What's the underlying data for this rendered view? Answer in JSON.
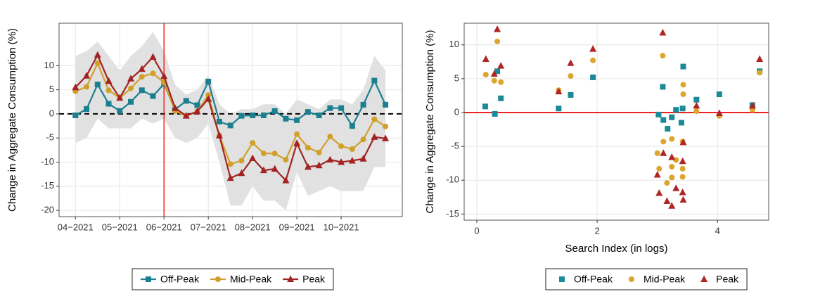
{
  "chart_data": [
    {
      "type": "line",
      "y_label": "Change in Aggregate Consumption (%)",
      "x": [
        0,
        0.25,
        0.5,
        0.75,
        1,
        1.25,
        1.5,
        1.75,
        2,
        2.25,
        2.5,
        2.75,
        3,
        3.25,
        3.5,
        3.75,
        4,
        4.25,
        4.5,
        4.75,
        5,
        5.25,
        5.5,
        5.75,
        6,
        6.25,
        6.5,
        6.75,
        7
      ],
      "xlim": [
        -0.37,
        7.38
      ],
      "xticks": [
        {
          "value": 0,
          "label": "04−2021"
        },
        {
          "value": 1,
          "label": "05−2021"
        },
        {
          "value": 2,
          "label": "06−2021"
        },
        {
          "value": 3,
          "label": "07−2021"
        },
        {
          "value": 4,
          "label": "08−2021"
        },
        {
          "value": 5,
          "label": "09−2021"
        },
        {
          "value": 6,
          "label": "10−2021"
        }
      ],
      "ylim": [
        -21.3,
        18.8
      ],
      "yticks": [
        -20,
        -15,
        -10,
        -5,
        0,
        5,
        10
      ],
      "grid": true,
      "vline": 2,
      "vline_color": "#ee2222",
      "hline": 0,
      "hline_color": "#000000",
      "hline_dash": true,
      "band": {
        "color": "#d9d9d9",
        "upper": [
          12,
          13,
          15,
          12,
          9,
          12,
          14,
          17,
          13,
          6,
          4,
          5,
          8,
          2,
          0,
          1,
          1,
          2,
          2,
          0,
          3,
          2,
          1,
          3,
          3,
          2,
          5,
          12,
          9
        ],
        "lower": [
          -6,
          -5,
          -1,
          -3,
          -3,
          -3,
          -1,
          -2,
          -1,
          -5,
          -6,
          -5,
          -2,
          -10,
          -19,
          -19,
          -15,
          -18,
          -18,
          -20,
          -12,
          -17,
          -16,
          -15,
          -16,
          -16,
          -16,
          -11,
          -11
        ]
      },
      "legend": "bottom",
      "series": [
        {
          "name": "Off-Peak",
          "color": "#1b7f8f",
          "marker": "square",
          "values": [
            -0.3,
            1,
            6.1,
            2.1,
            0.6,
            2.5,
            4.9,
            3.7,
            6.2,
            0.9,
            2.7,
            1.8,
            6.7,
            -1.6,
            -2.4,
            -0.4,
            -0.3,
            -0.3,
            0.6,
            -1,
            -1.3,
            0.4,
            -0.3,
            1.2,
            1.2,
            -2.5,
            1.9,
            6.9,
            1.9
          ]
        },
        {
          "name": "Mid-Peak",
          "color": "#d1a02a",
          "marker": "circle",
          "values": [
            4.7,
            5.6,
            10.5,
            4.9,
            3.3,
            5.3,
            7.7,
            8.4,
            6.5,
            0.6,
            -0.4,
            0.5,
            3.9,
            -4.5,
            -10.4,
            -9.7,
            -6,
            -8.2,
            -8.2,
            -9.5,
            -4.2,
            -7,
            -8,
            -4.7,
            -6.7,
            -7.3,
            -5.3,
            -1.1,
            -2.6
          ]
        },
        {
          "name": "Peak",
          "color": "#a32323",
          "marker": "triangle",
          "values": [
            5.5,
            7.9,
            12.2,
            6.8,
            3.3,
            7.3,
            9.3,
            11.8,
            7.8,
            1.2,
            -0.4,
            0.5,
            3.1,
            -4.5,
            -13.3,
            -12.3,
            -9.2,
            -11.7,
            -11.4,
            -13.8,
            -6.1,
            -11,
            -10.7,
            -9.5,
            -10,
            -9.7,
            -9.3,
            -4.8,
            -5.1
          ]
        }
      ]
    },
    {
      "type": "scatter",
      "y_label": "Change in Aggregate Consumption (%)",
      "x_label": "Search Index (in logs)",
      "xlim": [
        -0.21,
        4.85
      ],
      "xticks": [
        0,
        2,
        4
      ],
      "ylim": [
        -15.9,
        13.2
      ],
      "yticks": [
        -15,
        -10,
        -5,
        0,
        5,
        10
      ],
      "grid": true,
      "hline": 0,
      "hline_color": "#ee2222",
      "legend": "bottom",
      "series": [
        {
          "name": "Off-Peak",
          "color": "#1b8a98",
          "marker": "square",
          "x": [
            0.14,
            0.3,
            0.34,
            0.4,
            1.36,
            1.56,
            1.93,
            3.02,
            3.09,
            3.1,
            3.17,
            3.24,
            3.31,
            3.4,
            3.42,
            3.43,
            3.65,
            4.03,
            4.58,
            4.7
          ],
          "values": [
            0.9,
            -0.2,
            6.1,
            2.1,
            0.6,
            2.6,
            5.2,
            -0.3,
            3.8,
            -1.1,
            -2.4,
            -0.7,
            0.4,
            -1.5,
            0.6,
            6.8,
            1.9,
            2.7,
            1.1,
            6.1
          ]
        },
        {
          "name": "Mid-Peak",
          "color": "#dca52c",
          "marker": "circle",
          "x": [
            0.15,
            0.29,
            0.34,
            0.4,
            1.36,
            1.56,
            1.93,
            3.0,
            3.03,
            3.09,
            3.1,
            3.16,
            3.24,
            3.24,
            3.24,
            3.31,
            3.42,
            3.43,
            3.43,
            3.42,
            3.42,
            3.65,
            4.03,
            4.58,
            4.7
          ],
          "values": [
            5.6,
            4.7,
            10.5,
            4.5,
            3.3,
            5.4,
            7.7,
            -6,
            -8.3,
            8.4,
            -4.3,
            -10.4,
            -3.9,
            -8,
            -9.6,
            -7,
            -4.3,
            4.1,
            2.7,
            -8.3,
            -9.5,
            0.2,
            -0.5,
            0.4,
            5.9
          ]
        },
        {
          "name": "Peak",
          "color": "#b02525",
          "marker": "triangle",
          "x": [
            0.15,
            0.29,
            0.34,
            0.4,
            1.36,
            1.56,
            1.93,
            3.0,
            3.03,
            3.09,
            3.1,
            3.16,
            3.24,
            3.24,
            3.31,
            3.42,
            3.42,
            3.43,
            3.43,
            3.65,
            4.03,
            4.58,
            4.7
          ],
          "values": [
            7.9,
            5.7,
            12.3,
            6.9,
            3.1,
            7.3,
            9.4,
            -9.2,
            -11.9,
            11.8,
            -6,
            -13.1,
            -13.8,
            -6.6,
            -11.2,
            -11.8,
            -7.2,
            -12.9,
            -4.4,
            1,
            -0.1,
            1,
            7.9
          ]
        }
      ]
    }
  ]
}
